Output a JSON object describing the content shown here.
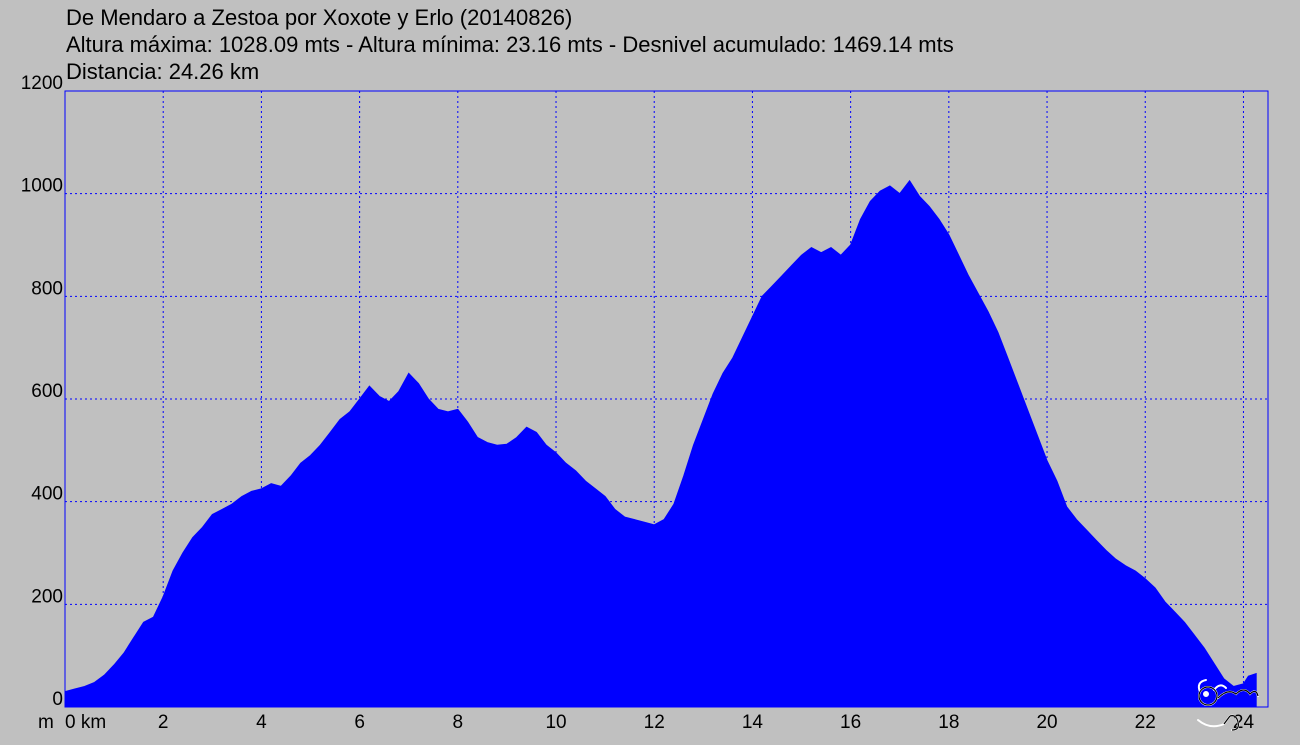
{
  "header": {
    "line1": "De Mendaro a Zestoa por Xoxote y Erlo (20140826)",
    "line2": "Altura máxima: 1028.09 mts - Altura mínima: 23.16 mts - Desnivel acumulado: 1469.14 mts",
    "line3": "Distancia: 24.26 km"
  },
  "chart_data": {
    "type": "area",
    "title": "De Mendaro a Zestoa por Xoxote y Erlo (20140826)",
    "xlabel": "km",
    "ylabel": "m",
    "xlim": [
      0,
      24.26
    ],
    "ylim": [
      0,
      1200
    ],
    "grid": true,
    "y_ticks": [
      "0",
      "200",
      "400",
      "600",
      "800",
      "1000",
      "1200"
    ],
    "x_ticks": [
      "0 km",
      "2",
      "4",
      "6",
      "8",
      "10",
      "12",
      "14",
      "16",
      "18",
      "20",
      "22",
      "24"
    ],
    "fill_color": "#0000ff",
    "grid_color": "#0000ff",
    "x": [
      0,
      0.2,
      0.4,
      0.6,
      0.8,
      1.0,
      1.2,
      1.4,
      1.6,
      1.8,
      2.0,
      2.2,
      2.4,
      2.6,
      2.8,
      3.0,
      3.2,
      3.4,
      3.6,
      3.8,
      4.0,
      4.2,
      4.4,
      4.6,
      4.8,
      5.0,
      5.2,
      5.4,
      5.6,
      5.8,
      6.0,
      6.2,
      6.4,
      6.6,
      6.8,
      7.0,
      7.2,
      7.4,
      7.6,
      7.8,
      8.0,
      8.2,
      8.4,
      8.6,
      8.8,
      9.0,
      9.2,
      9.4,
      9.6,
      9.8,
      10.0,
      10.2,
      10.4,
      10.6,
      10.8,
      11.0,
      11.2,
      11.4,
      11.6,
      11.8,
      12.0,
      12.2,
      12.4,
      12.6,
      12.8,
      13.0,
      13.2,
      13.4,
      13.6,
      13.8,
      14.0,
      14.2,
      14.4,
      14.6,
      14.8,
      15.0,
      15.2,
      15.4,
      15.6,
      15.8,
      16.0,
      16.2,
      16.4,
      16.6,
      16.8,
      17.0,
      17.2,
      17.4,
      17.6,
      17.8,
      18.0,
      18.2,
      18.4,
      18.6,
      18.8,
      19.0,
      19.2,
      19.4,
      19.6,
      19.8,
      20.0,
      20.2,
      20.4,
      20.6,
      20.8,
      21.0,
      21.2,
      21.4,
      21.6,
      21.8,
      22.0,
      22.2,
      22.4,
      22.6,
      22.8,
      23.0,
      23.2,
      23.4,
      23.6,
      23.8,
      24.0,
      24.1,
      24.26
    ],
    "y": [
      30,
      35,
      40,
      48,
      62,
      82,
      105,
      135,
      165,
      175,
      215,
      265,
      300,
      330,
      350,
      375,
      385,
      395,
      410,
      420,
      425,
      435,
      430,
      450,
      475,
      490,
      510,
      535,
      560,
      575,
      600,
      625,
      605,
      595,
      615,
      650,
      630,
      600,
      580,
      575,
      580,
      555,
      525,
      515,
      510,
      512,
      525,
      545,
      535,
      510,
      495,
      475,
      460,
      440,
      425,
      410,
      385,
      370,
      365,
      360,
      355,
      365,
      395,
      450,
      510,
      560,
      610,
      650,
      680,
      720,
      760,
      800,
      820,
      840,
      860,
      880,
      895,
      885,
      895,
      880,
      900,
      950,
      985,
      1005,
      1015,
      1000,
      1025,
      995,
      975,
      950,
      920,
      880,
      840,
      805,
      770,
      730,
      680,
      630,
      580,
      530,
      480,
      440,
      390,
      365,
      345,
      325,
      305,
      288,
      275,
      265,
      250,
      232,
      205,
      185,
      165,
      140,
      115,
      85,
      55,
      40,
      45,
      60,
      65
    ]
  }
}
